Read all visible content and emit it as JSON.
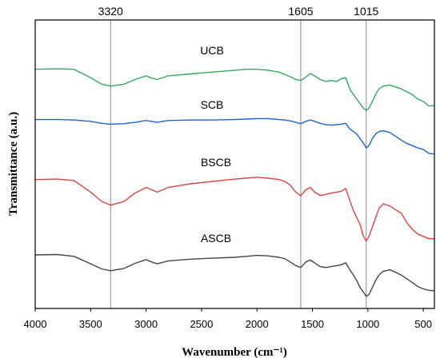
{
  "chart_data": {
    "type": "line",
    "xlabel": "Wavenumber (cm⁻¹)",
    "ylabel": "Transmittance (a.u.)",
    "xlim": [
      4000,
      400
    ],
    "x_reversed": true,
    "y_ticks_shown": false,
    "x_ticks": [
      4000,
      3500,
      3000,
      2500,
      2000,
      1500,
      1000,
      500
    ],
    "x_tick_labels": [
      "4000",
      "3500",
      "3000",
      "2500",
      "2000",
      "1500",
      "1000",
      "500"
    ],
    "reference_lines": [
      {
        "x": 3320,
        "label": "3320"
      },
      {
        "x": 1605,
        "label": "1605"
      },
      {
        "x": 1015,
        "label": "1015"
      }
    ],
    "ylim": [
      0,
      6.2
    ],
    "series": [
      {
        "name": "UCB",
        "color": "#3aa569",
        "x": [
          4000,
          3800,
          3650,
          3500,
          3400,
          3320,
          3200,
          3100,
          3000,
          2950,
          2900,
          2800,
          2600,
          2400,
          2200,
          2100,
          2000,
          1900,
          1800,
          1750,
          1700,
          1650,
          1605,
          1560,
          1520,
          1480,
          1430,
          1380,
          1330,
          1280,
          1240,
          1200,
          1160,
          1130,
          1100,
          1070,
          1040,
          1015,
          990,
          960,
          930,
          900,
          860,
          800,
          750,
          700,
          650,
          600,
          550,
          500,
          450,
          400
        ],
        "y": [
          5.14,
          5.15,
          5.14,
          4.96,
          4.82,
          4.78,
          4.82,
          4.92,
          5.0,
          4.95,
          4.92,
          5.0,
          5.04,
          5.08,
          5.12,
          5.14,
          5.14,
          5.12,
          5.08,
          5.03,
          4.98,
          4.92,
          4.9,
          4.97,
          5.05,
          5.0,
          4.92,
          4.88,
          4.9,
          4.88,
          4.94,
          4.96,
          4.7,
          4.6,
          4.5,
          4.4,
          4.3,
          4.26,
          4.3,
          4.45,
          4.6,
          4.72,
          4.78,
          4.8,
          4.76,
          4.72,
          4.66,
          4.6,
          4.5,
          4.45,
          4.35,
          4.36
        ]
      },
      {
        "name": "SCB",
        "color": "#1f63c4",
        "x": [
          4000,
          3800,
          3650,
          3500,
          3400,
          3320,
          3200,
          3100,
          3000,
          2950,
          2900,
          2800,
          2600,
          2400,
          2200,
          2100,
          2000,
          1900,
          1800,
          1750,
          1700,
          1650,
          1605,
          1560,
          1520,
          1480,
          1430,
          1380,
          1330,
          1280,
          1240,
          1200,
          1160,
          1130,
          1100,
          1070,
          1040,
          1015,
          990,
          960,
          930,
          900,
          860,
          800,
          750,
          700,
          650,
          600,
          550,
          500,
          450,
          400
        ],
        "y": [
          4.06,
          4.06,
          4.05,
          4.02,
          3.98,
          3.96,
          3.97,
          4.0,
          4.04,
          4.02,
          4.0,
          4.04,
          4.05,
          4.05,
          4.06,
          4.07,
          4.08,
          4.08,
          4.06,
          4.05,
          4.03,
          4.0,
          3.97,
          4.02,
          4.05,
          4.02,
          3.98,
          3.95,
          3.94,
          3.95,
          3.96,
          3.98,
          3.85,
          3.8,
          3.75,
          3.65,
          3.55,
          3.45,
          3.5,
          3.65,
          3.75,
          3.8,
          3.82,
          3.78,
          3.7,
          3.62,
          3.55,
          3.5,
          3.45,
          3.42,
          3.33,
          3.32
        ]
      },
      {
        "name": "BSCB",
        "color": "#d64545",
        "x": [
          4000,
          3800,
          3650,
          3500,
          3400,
          3320,
          3200,
          3100,
          3000,
          2950,
          2900,
          2800,
          2600,
          2400,
          2200,
          2100,
          2000,
          1900,
          1800,
          1750,
          1700,
          1650,
          1605,
          1560,
          1520,
          1480,
          1430,
          1380,
          1330,
          1280,
          1240,
          1200,
          1160,
          1130,
          1100,
          1070,
          1040,
          1015,
          990,
          960,
          930,
          900,
          860,
          800,
          750,
          700,
          650,
          600,
          550,
          500,
          450,
          400
        ],
        "y": [
          2.77,
          2.78,
          2.75,
          2.5,
          2.3,
          2.22,
          2.3,
          2.48,
          2.6,
          2.55,
          2.5,
          2.6,
          2.68,
          2.73,
          2.78,
          2.8,
          2.82,
          2.8,
          2.77,
          2.73,
          2.65,
          2.5,
          2.42,
          2.55,
          2.6,
          2.5,
          2.43,
          2.45,
          2.48,
          2.5,
          2.52,
          2.58,
          2.3,
          2.1,
          1.95,
          1.8,
          1.55,
          1.45,
          1.55,
          1.75,
          1.95,
          2.15,
          2.25,
          2.2,
          2.12,
          2.05,
          1.85,
          1.7,
          1.6,
          1.55,
          1.5,
          1.5
        ]
      },
      {
        "name": "ASCB",
        "color": "#454545",
        "x": [
          4000,
          3800,
          3650,
          3500,
          3400,
          3320,
          3200,
          3100,
          3000,
          2950,
          2900,
          2800,
          2600,
          2400,
          2200,
          2100,
          2000,
          1900,
          1800,
          1750,
          1700,
          1650,
          1605,
          1560,
          1520,
          1480,
          1430,
          1380,
          1330,
          1280,
          1240,
          1200,
          1160,
          1130,
          1100,
          1070,
          1040,
          1015,
          990,
          960,
          930,
          900,
          860,
          800,
          750,
          700,
          650,
          600,
          550,
          500,
          450,
          400
        ],
        "y": [
          1.15,
          1.16,
          1.12,
          0.96,
          0.85,
          0.81,
          0.86,
          0.97,
          1.05,
          1.0,
          0.96,
          1.02,
          1.06,
          1.08,
          1.1,
          1.12,
          1.14,
          1.13,
          1.1,
          1.07,
          1.0,
          0.92,
          0.88,
          1.0,
          1.04,
          0.98,
          0.9,
          0.88,
          0.9,
          0.92,
          0.94,
          0.98,
          0.82,
          0.72,
          0.6,
          0.45,
          0.35,
          0.26,
          0.3,
          0.45,
          0.6,
          0.72,
          0.8,
          0.83,
          0.78,
          0.72,
          0.64,
          0.56,
          0.47,
          0.42,
          0.39,
          0.38
        ]
      }
    ]
  }
}
